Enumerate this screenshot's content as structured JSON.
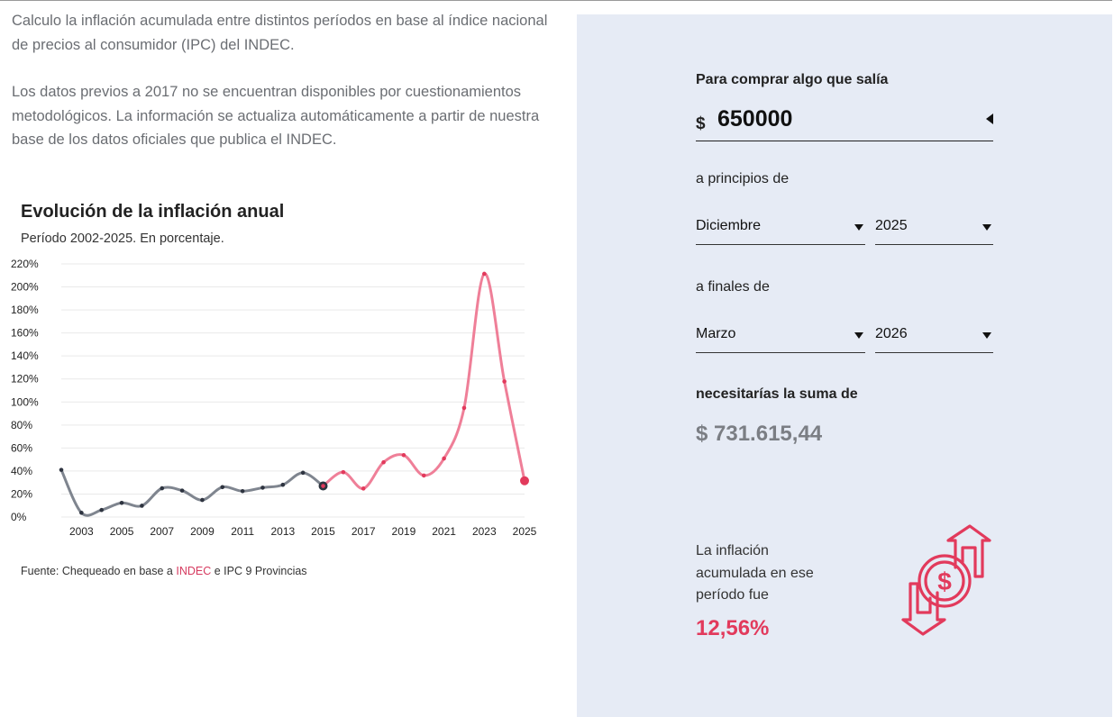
{
  "intro": {
    "paragraph_1": "Calculo la inflación acumulada entre distintos períodos en base al índice nacional de precios al consumidor (IPC) del INDEC.",
    "paragraph_2": "Los datos previos a 2017 no se encuentran disponibles por cuestionamientos metodológicos. La información se actualiza automáticamente a partir de nuestra base de los datos oficiales que publica el INDEC."
  },
  "chart_data": {
    "type": "line",
    "title": "Evolución de la inflación anual",
    "subtitle": "Período 2002-2025. En porcentaje.",
    "xlabel": "",
    "ylabel": "",
    "ylim": [
      0,
      220
    ],
    "xlim": [
      2002,
      2025
    ],
    "yticks": [
      0,
      20,
      40,
      60,
      80,
      100,
      120,
      140,
      160,
      180,
      200,
      220
    ],
    "ytick_labels": [
      "0%",
      "20%",
      "40%",
      "60%",
      "80%",
      "100%",
      "120%",
      "140%",
      "160%",
      "180%",
      "200%",
      "220%"
    ],
    "xticks": [
      "2003",
      "2005",
      "2007",
      "2009",
      "2011",
      "2013",
      "2015",
      "2017",
      "2019",
      "2021",
      "2023",
      "2025"
    ],
    "grid": true,
    "legend": "none",
    "series": [
      {
        "color": "#7f858f",
        "point_color": "#2e3440",
        "x": [
          2002,
          2003,
          2004,
          2005,
          2006,
          2007,
          2008,
          2009,
          2010,
          2011,
          2012,
          2013,
          2014,
          2015
        ],
        "values": [
          41,
          3.7,
          6.1,
          12.3,
          9.8,
          25,
          23,
          14.8,
          26,
          22.5,
          25.5,
          28,
          38.5,
          27
        ]
      },
      {
        "color": "#ef7f98",
        "point_color": "#e23a5c",
        "x": [
          2015,
          2016,
          2017,
          2018,
          2019,
          2020,
          2021,
          2022,
          2023,
          2024,
          2025
        ],
        "values": [
          27,
          39,
          24.8,
          47.6,
          53.8,
          36.1,
          50.9,
          94.8,
          211.4,
          117.8,
          31.5
        ]
      }
    ]
  },
  "source": {
    "prefix": "Fuente: Chequeado en base a ",
    "link": "INDEC",
    "suffix": " e IPC 9 Provincias"
  },
  "calculator": {
    "label_price": "Para comprar algo que salía",
    "currency": "$",
    "amount": "650000",
    "label_start": "a principios de",
    "start_month": "Diciembre",
    "start_year": "2025",
    "label_end": "a finales de",
    "end_month": "Marzo",
    "end_year": "2026",
    "label_need": "necesitarías la suma de",
    "result": "$ 731.615,44",
    "summary": "La inflación acumulada en ese período fue",
    "percent": "12,56%",
    "icon": "money-exchange-icon",
    "accent_color": "#e23a5c"
  }
}
